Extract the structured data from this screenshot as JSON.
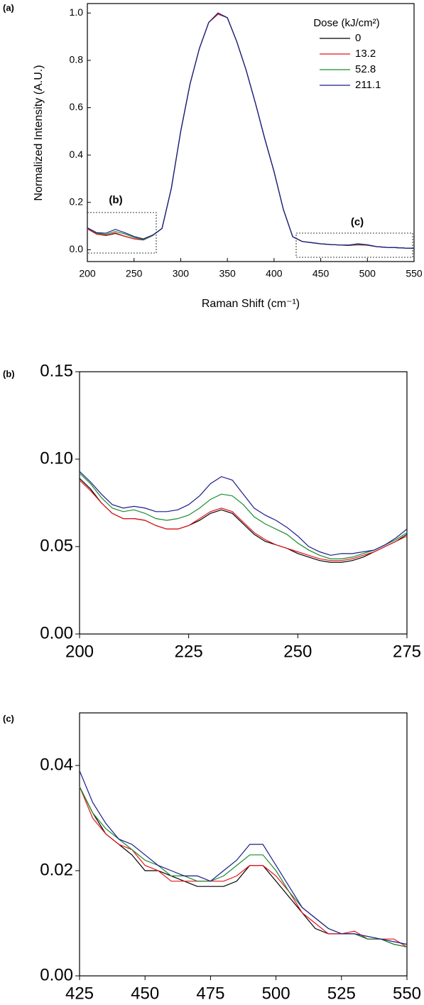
{
  "chart_data": [
    {
      "type": "line",
      "panel_label": "(a)",
      "x_label": "Raman Shift (cm⁻¹)",
      "y_label": "Normalized Intensity (A.U.)",
      "legend_title": "Dose (kJ/cm²)",
      "legend": "upper right",
      "annotations": [
        "(b)",
        "(c)"
      ],
      "x": [
        200,
        210,
        220,
        230,
        240,
        250,
        260,
        270,
        280,
        290,
        300,
        310,
        320,
        330,
        340,
        350,
        360,
        370,
        380,
        390,
        400,
        410,
        420,
        430,
        440,
        450,
        460,
        470,
        480,
        490,
        500,
        510,
        520,
        530,
        540,
        550
      ],
      "xlim": [
        200,
        550
      ],
      "xticks": [
        200,
        250,
        300,
        350,
        400,
        450,
        500,
        550
      ],
      "ylim": [
        -0.05,
        1.04
      ],
      "yticks": [
        {
          "value": 0,
          "label": "0.0"
        },
        0.2,
        0.4,
        0.6,
        0.8,
        {
          "value": 1,
          "label": "1.0"
        }
      ],
      "series": [
        {
          "name": "0",
          "color": "#000000",
          "values": [
            0.089,
            0.066,
            0.06,
            0.069,
            0.057,
            0.046,
            0.041,
            0.06,
            0.09,
            0.26,
            0.5,
            0.7,
            0.85,
            0.96,
            1.0,
            0.98,
            0.88,
            0.76,
            0.62,
            0.47,
            0.33,
            0.17,
            0.055,
            0.035,
            0.03,
            0.025,
            0.022,
            0.02,
            0.018,
            0.021,
            0.019,
            0.013,
            0.01,
            0.009,
            0.007,
            0.006
          ]
        },
        {
          "name": "13.2",
          "color": "#e8141c",
          "values": [
            0.088,
            0.066,
            0.061,
            0.071,
            0.057,
            0.046,
            0.042,
            0.06,
            0.09,
            0.26,
            0.5,
            0.7,
            0.85,
            0.96,
            0.995,
            0.98,
            0.88,
            0.76,
            0.62,
            0.47,
            0.33,
            0.17,
            0.055,
            0.035,
            0.03,
            0.025,
            0.022,
            0.02,
            0.018,
            0.021,
            0.019,
            0.013,
            0.01,
            0.009,
            0.007,
            0.006
          ]
        },
        {
          "name": "52.8",
          "color": "#1a8c2c",
          "values": [
            0.092,
            0.07,
            0.065,
            0.077,
            0.067,
            0.052,
            0.043,
            0.06,
            0.09,
            0.26,
            0.5,
            0.7,
            0.85,
            0.96,
            1.0,
            0.98,
            0.88,
            0.76,
            0.62,
            0.47,
            0.33,
            0.17,
            0.055,
            0.035,
            0.03,
            0.025,
            0.022,
            0.02,
            0.019,
            0.023,
            0.02,
            0.013,
            0.01,
            0.009,
            0.007,
            0.006
          ]
        },
        {
          "name": "211.1",
          "color": "#1c1c8c",
          "values": [
            0.093,
            0.072,
            0.07,
            0.086,
            0.072,
            0.056,
            0.046,
            0.062,
            0.09,
            0.26,
            0.5,
            0.7,
            0.85,
            0.96,
            1.0,
            0.98,
            0.88,
            0.76,
            0.62,
            0.47,
            0.33,
            0.17,
            0.055,
            0.035,
            0.03,
            0.025,
            0.022,
            0.02,
            0.02,
            0.025,
            0.021,
            0.013,
            0.01,
            0.009,
            0.007,
            0.006
          ]
        }
      ]
    },
    {
      "type": "line",
      "panel_label": "(b)",
      "x": [
        200,
        202.5,
        205,
        207.5,
        210,
        212.5,
        215,
        217.5,
        220,
        222.5,
        225,
        227.5,
        230,
        232.5,
        235,
        237.5,
        240,
        242.5,
        245,
        247.5,
        250,
        252.5,
        255,
        257.5,
        260,
        262.5,
        265,
        267.5,
        270,
        272.5,
        275
      ],
      "xlim": [
        200,
        275
      ],
      "xticks": [
        200,
        225,
        250,
        275
      ],
      "ylim": [
        0,
        0.15
      ],
      "yticks": [
        {
          "value": 0,
          "label": "0.00"
        },
        {
          "value": 0.05,
          "label": "0.05"
        },
        {
          "value": 0.1,
          "label": "0.10"
        },
        {
          "value": 0.15,
          "label": "0.15"
        }
      ],
      "series": [
        {
          "color": "#000000",
          "values": [
            0.089,
            0.083,
            0.075,
            0.069,
            0.066,
            0.066,
            0.065,
            0.062,
            0.06,
            0.06,
            0.062,
            0.065,
            0.069,
            0.071,
            0.069,
            0.063,
            0.057,
            0.053,
            0.051,
            0.049,
            0.046,
            0.044,
            0.042,
            0.041,
            0.041,
            0.042,
            0.044,
            0.047,
            0.05,
            0.053,
            0.057
          ]
        },
        {
          "color": "#e8141c",
          "values": [
            0.088,
            0.082,
            0.075,
            0.069,
            0.066,
            0.066,
            0.065,
            0.062,
            0.06,
            0.06,
            0.062,
            0.066,
            0.07,
            0.072,
            0.07,
            0.064,
            0.058,
            0.054,
            0.051,
            0.049,
            0.047,
            0.045,
            0.043,
            0.042,
            0.042,
            0.043,
            0.045,
            0.047,
            0.05,
            0.053,
            0.056
          ]
        },
        {
          "color": "#1a8c2c",
          "values": [
            0.092,
            0.086,
            0.078,
            0.072,
            0.07,
            0.071,
            0.069,
            0.066,
            0.065,
            0.066,
            0.068,
            0.072,
            0.077,
            0.08,
            0.079,
            0.074,
            0.067,
            0.063,
            0.06,
            0.057,
            0.052,
            0.048,
            0.045,
            0.043,
            0.043,
            0.044,
            0.046,
            0.048,
            0.051,
            0.054,
            0.058
          ]
        },
        {
          "color": "#1c1c8c",
          "values": [
            0.093,
            0.087,
            0.08,
            0.074,
            0.072,
            0.073,
            0.072,
            0.07,
            0.07,
            0.071,
            0.074,
            0.079,
            0.086,
            0.09,
            0.088,
            0.08,
            0.072,
            0.068,
            0.065,
            0.061,
            0.056,
            0.05,
            0.047,
            0.045,
            0.046,
            0.046,
            0.047,
            0.048,
            0.051,
            0.055,
            0.06
          ]
        }
      ]
    },
    {
      "type": "line",
      "panel_label": "(c)",
      "x": [
        425,
        430,
        435,
        440,
        445,
        450,
        455,
        460,
        465,
        470,
        475,
        480,
        485,
        490,
        495,
        500,
        505,
        510,
        515,
        520,
        525,
        530,
        535,
        540,
        545,
        550
      ],
      "xlim": [
        425,
        550
      ],
      "xticks": [
        425,
        450,
        475,
        500,
        525,
        550
      ],
      "ylim": [
        0,
        0.05
      ],
      "yticks": [
        {
          "value": 0,
          "label": "0.00"
        },
        {
          "value": 0.02,
          "label": "0.02"
        },
        {
          "value": 0.04,
          "label": "0.04"
        }
      ],
      "series": [
        {
          "color": "#000000",
          "values": [
            0.036,
            0.031,
            0.027,
            0.025,
            0.023,
            0.02,
            0.02,
            0.019,
            0.018,
            0.017,
            0.017,
            0.017,
            0.018,
            0.021,
            0.021,
            0.018,
            0.015,
            0.012,
            0.009,
            0.008,
            0.008,
            0.008,
            0.007,
            0.007,
            0.006,
            0.0055
          ]
        },
        {
          "color": "#e8141c",
          "values": [
            0.036,
            0.03,
            0.027,
            0.025,
            0.024,
            0.021,
            0.02,
            0.018,
            0.018,
            0.018,
            0.018,
            0.018,
            0.019,
            0.021,
            0.021,
            0.019,
            0.016,
            0.012,
            0.01,
            0.008,
            0.008,
            0.0085,
            0.007,
            0.007,
            0.007,
            0.0055
          ]
        },
        {
          "color": "#1a8c2c",
          "values": [
            0.036,
            0.031,
            0.028,
            0.026,
            0.024,
            0.022,
            0.021,
            0.019,
            0.019,
            0.018,
            0.018,
            0.019,
            0.021,
            0.023,
            0.023,
            0.02,
            0.016,
            0.013,
            0.011,
            0.009,
            0.008,
            0.008,
            0.007,
            0.007,
            0.006,
            0.0055
          ]
        },
        {
          "color": "#1c1c8c",
          "values": [
            0.039,
            0.033,
            0.029,
            0.026,
            0.025,
            0.023,
            0.021,
            0.02,
            0.019,
            0.019,
            0.018,
            0.02,
            0.022,
            0.025,
            0.025,
            0.021,
            0.017,
            0.013,
            0.011,
            0.009,
            0.008,
            0.008,
            0.0075,
            0.007,
            0.0065,
            0.006
          ]
        }
      ]
    }
  ]
}
